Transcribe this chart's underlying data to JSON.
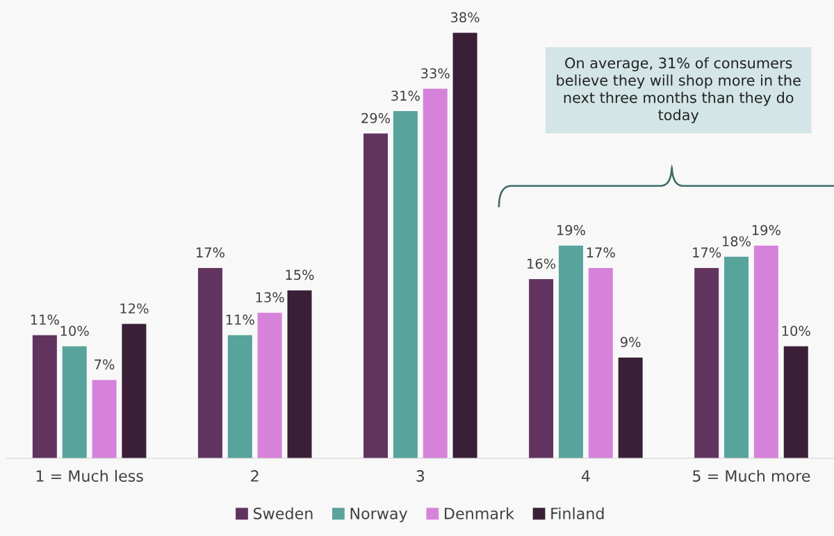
{
  "chart_data": {
    "type": "bar",
    "categories": [
      "1 = Much less",
      "2",
      "3",
      "4",
      "5 = Much more"
    ],
    "series": [
      {
        "name": "Sweden",
        "color": "#60345e",
        "values": [
          11,
          17,
          29,
          16,
          17
        ],
        "value_labels": [
          "11%",
          "17%",
          "29%",
          "16%",
          "17%"
        ]
      },
      {
        "name": "Norway",
        "color": "#58a39c",
        "values": [
          10,
          11,
          31,
          19,
          18
        ],
        "value_labels": [
          "10%",
          "11%",
          "31%",
          "19%",
          "18%"
        ]
      },
      {
        "name": "Denmark",
        "color": "#d682da",
        "values": [
          7,
          13,
          33,
          17,
          19
        ],
        "value_labels": [
          "7%",
          "13%",
          "33%",
          "17%",
          "19%"
        ]
      },
      {
        "name": "Finland",
        "color": "#3a1f37",
        "values": [
          12,
          15,
          38,
          9,
          10
        ],
        "value_labels": [
          "12%",
          "15%",
          "38%",
          "9%",
          "10%"
        ]
      }
    ],
    "annotations": [
      "On average, 31% of consumers believe they will shop more in the next three months than they do today"
    ],
    "legend": "bottom",
    "grid": false
  }
}
